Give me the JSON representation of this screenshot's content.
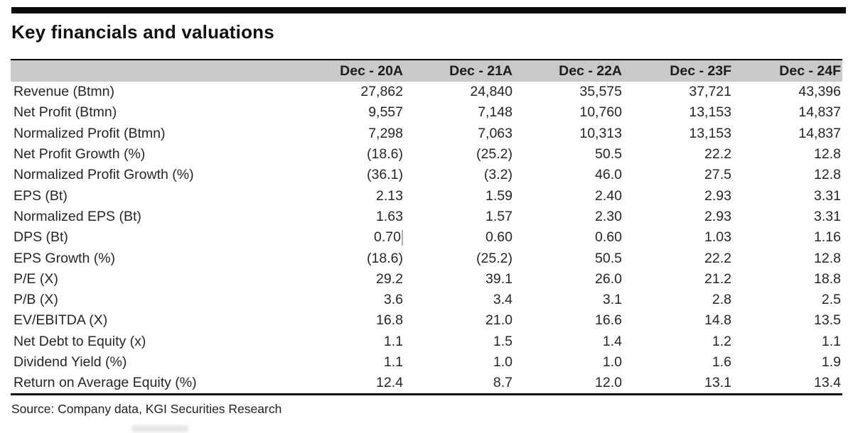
{
  "title": "Key financials and valuations",
  "source": "Source: Company data, KGI Securities Research",
  "colors": {
    "header_bg": "#c9c9c9",
    "top_bar": "#0a0a0a",
    "text": "#262626"
  },
  "table": {
    "columns": [
      "Dec - 20A",
      "Dec - 21A",
      "Dec - 22A",
      "Dec - 23F",
      "Dec - 24F"
    ],
    "rows": [
      {
        "label": "Revenue (Btmn)",
        "values": [
          "27,862",
          "24,840",
          "35,575",
          "37,721",
          "43,396"
        ]
      },
      {
        "label": "Net Profit (Btmn)",
        "values": [
          "9,557",
          "7,148",
          "10,760",
          "13,153",
          "14,837"
        ]
      },
      {
        "label": "Normalized Profit (Btmn)",
        "values": [
          "7,298",
          "7,063",
          "10,313",
          "13,153",
          "14,837"
        ]
      },
      {
        "label": "Net Profit Growth (%)",
        "values": [
          "(18.6)",
          "(25.2)",
          "50.5",
          "22.2",
          "12.8"
        ]
      },
      {
        "label": "Normalized Profit Growth (%)",
        "values": [
          "(36.1)",
          "(3.2)",
          "46.0",
          "27.5",
          "12.8"
        ]
      },
      {
        "label": "EPS (Bt)",
        "values": [
          "2.13",
          "1.59",
          "2.40",
          "2.93",
          "3.31"
        ]
      },
      {
        "label": "Normalized EPS (Bt)",
        "values": [
          "1.63",
          "1.57",
          "2.30",
          "2.93",
          "3.31"
        ]
      },
      {
        "label": "DPS (Bt)",
        "values": [
          "0.70",
          "0.60",
          "0.60",
          "1.03",
          "1.16"
        ]
      },
      {
        "label": "EPS Growth (%)",
        "values": [
          "(18.6)",
          "(25.2)",
          "50.5",
          "22.2",
          "12.8"
        ]
      },
      {
        "label": "P/E (X)",
        "values": [
          "29.2",
          "39.1",
          "26.0",
          "21.2",
          "18.8"
        ]
      },
      {
        "label": "P/B (X)",
        "values": [
          "3.6",
          "3.4",
          "3.1",
          "2.8",
          "2.5"
        ]
      },
      {
        "label": "EV/EBITDA (X)",
        "values": [
          "16.8",
          "21.0",
          "16.6",
          "14.8",
          "13.5"
        ]
      },
      {
        "label": "Net Debt to Equity (x)",
        "values": [
          "1.1",
          "1.5",
          "1.4",
          "1.2",
          "1.1"
        ]
      },
      {
        "label": "Dividend Yield (%)",
        "values": [
          "1.1",
          "1.0",
          "1.0",
          "1.6",
          "1.9"
        ]
      },
      {
        "label": "Return on Average Equity (%)",
        "values": [
          "12.4",
          "8.7",
          "12.0",
          "13.1",
          "13.4"
        ]
      }
    ]
  }
}
